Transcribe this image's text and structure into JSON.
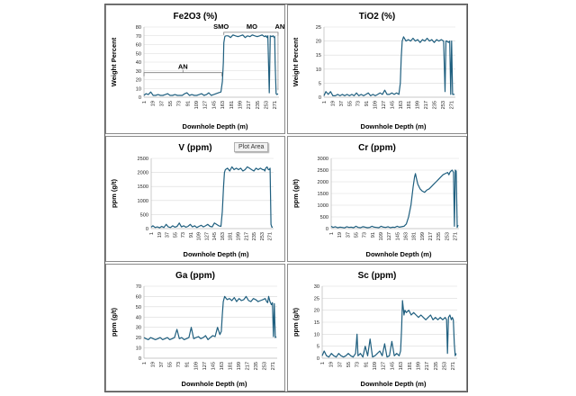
{
  "tooltip": "Plot Area",
  "chart_data": [
    {
      "type": "line",
      "title": "Fe2O3 (%)",
      "xlabel": "Downhole Depth (m)",
      "ylabel": "Weight Percent",
      "ylim": [
        0,
        80
      ],
      "yticks": [
        0,
        10,
        20,
        30,
        40,
        50,
        60,
        70,
        80
      ],
      "xticks": [
        "1",
        "19",
        "37",
        "55",
        "73",
        "91",
        "109",
        "127",
        "145",
        "163",
        "181",
        "199",
        "217",
        "235",
        "253",
        "271"
      ],
      "annotations": [
        {
          "text": "AN",
          "color": "#2e8b2e"
        },
        {
          "text": "SMO",
          "color": "#7030a0"
        },
        {
          "text": "MO",
          "color": "#e00000"
        },
        {
          "text": "AN",
          "color": "#2e8b2e"
        }
      ],
      "x": [
        1,
        5,
        10,
        15,
        20,
        25,
        30,
        35,
        40,
        45,
        50,
        55,
        60,
        65,
        70,
        75,
        80,
        85,
        90,
        95,
        100,
        105,
        110,
        115,
        120,
        125,
        130,
        135,
        140,
        145,
        150,
        155,
        160,
        163,
        165,
        166,
        168,
        170,
        175,
        180,
        185,
        190,
        195,
        200,
        205,
        210,
        215,
        220,
        225,
        230,
        235,
        240,
        245,
        250,
        253,
        255,
        257,
        260,
        262,
        265,
        268,
        270,
        271,
        272,
        274,
        276,
        278
      ],
      "values": [
        2,
        4,
        3,
        6,
        2,
        2,
        3,
        2,
        2,
        3,
        4,
        2,
        2,
        3,
        2,
        2,
        2,
        4,
        5,
        2,
        3,
        2,
        2,
        3,
        4,
        2,
        3,
        5,
        2,
        3,
        4,
        5,
        6,
        18,
        40,
        62,
        69,
        70,
        70,
        68,
        71,
        70,
        69,
        70,
        71,
        68,
        70,
        69,
        71,
        70,
        69,
        70,
        71,
        69,
        70,
        68,
        70,
        5,
        70,
        69,
        70,
        68,
        69,
        40,
        4,
        3,
        4
      ]
    },
    {
      "type": "line",
      "title": "TiO2 (%)",
      "xlabel": "Downhole Depth (m)",
      "ylabel": "Weight Percent",
      "ylim": [
        0,
        25
      ],
      "yticks": [
        0,
        5,
        10,
        15,
        20,
        25
      ],
      "xticks": [
        "1",
        "19",
        "37",
        "55",
        "73",
        "91",
        "109",
        "127",
        "145",
        "163",
        "181",
        "199",
        "217",
        "235",
        "253",
        "271"
      ],
      "x": [
        1,
        5,
        10,
        15,
        20,
        25,
        30,
        35,
        40,
        45,
        50,
        55,
        60,
        65,
        70,
        75,
        80,
        85,
        90,
        95,
        100,
        105,
        110,
        115,
        120,
        125,
        130,
        135,
        140,
        145,
        150,
        155,
        160,
        163,
        165,
        167,
        170,
        175,
        180,
        185,
        190,
        195,
        200,
        205,
        210,
        215,
        220,
        225,
        230,
        235,
        240,
        245,
        250,
        255,
        258,
        260,
        262,
        265,
        268,
        270,
        272,
        274,
        276,
        278
      ],
      "values": [
        0.5,
        2,
        1,
        2,
        0.5,
        0.5,
        1,
        0.5,
        1,
        0.5,
        1,
        0.5,
        1,
        0.5,
        1.5,
        0.5,
        1,
        0.5,
        1,
        1.5,
        0.5,
        1,
        0.5,
        1,
        1.5,
        1,
        2.5,
        1,
        1,
        1.5,
        1,
        1.5,
        1,
        5,
        14,
        20,
        21.5,
        20,
        20.5,
        20,
        21,
        20,
        20.5,
        19.5,
        20.5,
        20,
        21,
        20,
        20.5,
        19.5,
        20.5,
        20,
        20.5,
        20,
        2,
        20,
        20,
        19.5,
        20,
        1,
        20,
        1,
        1,
        1
      ]
    },
    {
      "type": "line",
      "title": "V (ppm)",
      "xlabel": "Downhole Depth (m)",
      "ylabel": "ppm (g/t)",
      "ylim": [
        0,
        2500
      ],
      "yticks": [
        0,
        500,
        1000,
        1500,
        2000,
        2500
      ],
      "xticks": [
        "1",
        "19",
        "37",
        "55",
        "73",
        "91",
        "109",
        "127",
        "145",
        "163",
        "181",
        "199",
        "217",
        "235",
        "253",
        "271"
      ],
      "x": [
        1,
        5,
        10,
        15,
        20,
        25,
        30,
        35,
        40,
        45,
        50,
        55,
        60,
        65,
        70,
        75,
        80,
        85,
        90,
        95,
        100,
        105,
        110,
        115,
        120,
        125,
        130,
        135,
        140,
        145,
        150,
        155,
        160,
        163,
        166,
        168,
        170,
        175,
        180,
        185,
        190,
        195,
        200,
        205,
        210,
        215,
        220,
        225,
        230,
        235,
        240,
        245,
        250,
        255,
        258,
        260,
        262,
        265,
        268,
        270,
        272,
        274,
        276,
        278
      ],
      "values": [
        50,
        100,
        40,
        60,
        30,
        80,
        40,
        150,
        60,
        40,
        100,
        50,
        80,
        200,
        60,
        100,
        50,
        80,
        150,
        60,
        100,
        40,
        80,
        120,
        60,
        100,
        150,
        80,
        60,
        200,
        150,
        100,
        80,
        600,
        1500,
        2000,
        2100,
        2150,
        2050,
        2200,
        2100,
        2150,
        2100,
        2150,
        2050,
        2100,
        2200,
        2150,
        2100,
        2050,
        2150,
        2100,
        2150,
        2100,
        2100,
        2050,
        2150,
        2200,
        2100,
        2100,
        2150,
        150,
        50,
        50
      ]
    },
    {
      "type": "line",
      "title": "Cr (ppm)",
      "xlabel": "Downhole Depth (m)",
      "ylabel": "ppm (g/t)",
      "ylim": [
        0,
        3000
      ],
      "yticks": [
        0,
        500,
        1000,
        1500,
        2000,
        2500,
        3000
      ],
      "xticks": [
        "1",
        "19",
        "37",
        "55",
        "73",
        "91",
        "109",
        "127",
        "145",
        "163",
        "181",
        "199",
        "217",
        "235",
        "253",
        "271"
      ],
      "x": [
        1,
        5,
        10,
        15,
        20,
        25,
        30,
        35,
        40,
        45,
        50,
        55,
        60,
        65,
        70,
        75,
        80,
        85,
        90,
        95,
        100,
        105,
        110,
        115,
        120,
        125,
        130,
        135,
        140,
        145,
        150,
        155,
        160,
        165,
        170,
        175,
        180,
        183,
        185,
        187,
        190,
        195,
        200,
        205,
        210,
        215,
        220,
        225,
        230,
        235,
        240,
        245,
        250,
        255,
        258,
        260,
        262,
        265,
        268,
        270,
        272,
        274,
        276,
        278
      ],
      "values": [
        100,
        50,
        80,
        40,
        60,
        50,
        30,
        80,
        50,
        60,
        40,
        100,
        50,
        40,
        80,
        60,
        40,
        50,
        100,
        60,
        50,
        40,
        100,
        60,
        50,
        80,
        40,
        60,
        50,
        100,
        60,
        80,
        100,
        200,
        500,
        1000,
        1800,
        2200,
        2350,
        2150,
        1900,
        1700,
        1600,
        1550,
        1650,
        1700,
        1800,
        1900,
        2000,
        2100,
        2200,
        2300,
        2350,
        2400,
        2300,
        2400,
        2450,
        2500,
        2400,
        100,
        2500,
        2450,
        50,
        150
      ]
    },
    {
      "type": "line",
      "title": "Ga (ppm)",
      "xlabel": "Downhole Depth (m)",
      "ylabel": "ppm (g/t)",
      "ylim": [
        0,
        70
      ],
      "yticks": [
        0,
        10,
        20,
        30,
        40,
        50,
        60,
        70
      ],
      "xticks": [
        "1",
        "19",
        "37",
        "55",
        "73",
        "91",
        "109",
        "127",
        "145",
        "163",
        "181",
        "199",
        "217",
        "235",
        "253",
        "271"
      ],
      "x": [
        1,
        5,
        10,
        15,
        20,
        25,
        30,
        35,
        40,
        45,
        50,
        55,
        60,
        65,
        70,
        75,
        80,
        85,
        90,
        95,
        100,
        105,
        110,
        115,
        120,
        125,
        130,
        135,
        140,
        145,
        150,
        155,
        160,
        163,
        165,
        167,
        170,
        175,
        180,
        185,
        190,
        195,
        200,
        205,
        210,
        215,
        220,
        225,
        230,
        235,
        240,
        245,
        250,
        255,
        258,
        260,
        262,
        265,
        268,
        270,
        272,
        274,
        276,
        278
      ],
      "values": [
        20,
        19,
        18,
        20,
        19,
        18,
        19,
        20,
        18,
        19,
        20,
        18,
        19,
        20,
        28,
        19,
        20,
        18,
        19,
        20,
        30,
        19,
        20,
        21,
        19,
        20,
        22,
        18,
        20,
        22,
        21,
        30,
        23,
        26,
        42,
        55,
        60,
        57,
        58,
        56,
        59,
        55,
        58,
        56,
        57,
        60,
        56,
        55,
        58,
        57,
        55,
        56,
        57,
        58,
        55,
        54,
        60,
        55,
        52,
        54,
        21,
        53,
        20,
        21
      ]
    },
    {
      "type": "line",
      "title": "Sc (ppm)",
      "xlabel": "Downhole Depth (m)",
      "ylabel": "ppm (g/t)",
      "ylim": [
        0,
        30
      ],
      "yticks": [
        0,
        5,
        10,
        15,
        20,
        25,
        30
      ],
      "xticks": [
        "1",
        "19",
        "37",
        "55",
        "73",
        "91",
        "109",
        "127",
        "145",
        "163",
        "181",
        "199",
        "217",
        "235",
        "253",
        "271"
      ],
      "x": [
        1,
        5,
        10,
        15,
        20,
        25,
        30,
        35,
        40,
        45,
        50,
        55,
        60,
        65,
        70,
        73,
        75,
        80,
        85,
        90,
        95,
        100,
        105,
        110,
        115,
        120,
        125,
        130,
        135,
        140,
        145,
        150,
        155,
        160,
        163,
        165,
        167,
        170,
        172,
        175,
        180,
        185,
        190,
        195,
        200,
        205,
        210,
        215,
        220,
        225,
        230,
        235,
        240,
        245,
        250,
        255,
        258,
        260,
        262,
        265,
        268,
        270,
        272,
        274,
        276,
        278
      ],
      "values": [
        1,
        3,
        1,
        0.5,
        2,
        1,
        0.5,
        2,
        1,
        0.5,
        1,
        2,
        1,
        0.5,
        2,
        10,
        1,
        2,
        0.5,
        5,
        1,
        8,
        0.5,
        1,
        2,
        3,
        1,
        6,
        0.5,
        1,
        7,
        1,
        2,
        1,
        3,
        12,
        24,
        18,
        20,
        19,
        20,
        18,
        19,
        18,
        17,
        18,
        17,
        16,
        17,
        18,
        16,
        17,
        16,
        17,
        16,
        17,
        16,
        2,
        17,
        18,
        16,
        17,
        16,
        6,
        1,
        2
      ]
    }
  ]
}
